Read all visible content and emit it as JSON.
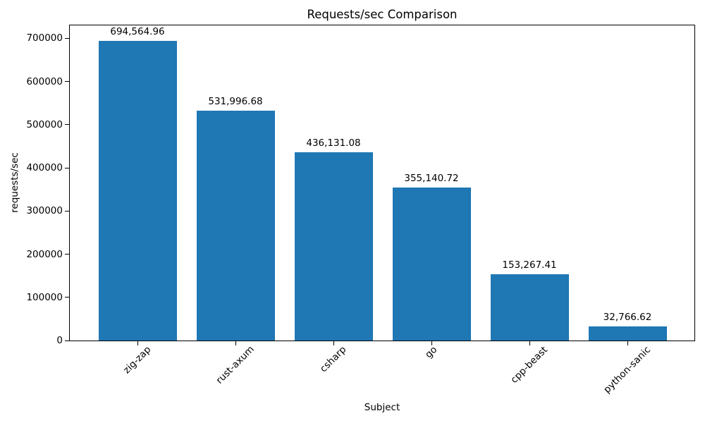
{
  "chart_data": {
    "type": "bar",
    "title": "Requests/sec Comparison",
    "xlabel": "Subject",
    "ylabel": "requests/sec",
    "categories": [
      "zig-zap",
      "rust-axum",
      "csharp",
      "go",
      "cpp-beast",
      "python-sanic"
    ],
    "values": [
      694564.96,
      531996.68,
      436131.08,
      355140.72,
      153267.41,
      32766.62
    ],
    "value_labels": [
      "694,564.96",
      "531,996.68",
      "436,131.08",
      "355,140.72",
      "153,267.41",
      "32,766.62"
    ],
    "bar_color": "#1f77b4",
    "axis_color": "#000000",
    "background_color": "#ffffff",
    "ylim": [
      0,
      730000
    ],
    "yticks": [
      0,
      100000,
      200000,
      300000,
      400000,
      500000,
      600000,
      700000
    ],
    "xtick_rotation_deg": 45,
    "grid": false,
    "legend_position": "none"
  }
}
